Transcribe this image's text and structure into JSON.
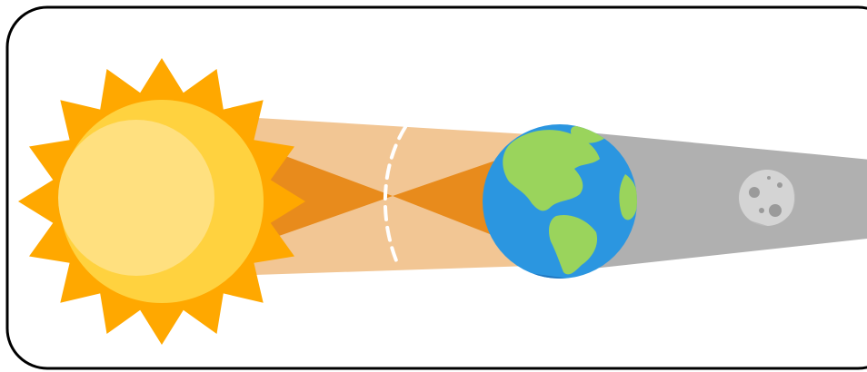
{
  "diagram": {
    "bodies": [
      {
        "id": "sun",
        "icon": "sun-icon"
      },
      {
        "id": "earth",
        "icon": "earth-icon"
      },
      {
        "id": "moon",
        "icon": "moon-icon"
      }
    ],
    "regions": [
      {
        "id": "penumbra-beam",
        "role": "light-beam"
      },
      {
        "id": "umbra-cone",
        "role": "umbra"
      },
      {
        "id": "earth-shadow",
        "role": "shadow"
      },
      {
        "id": "focal-line",
        "role": "dashed-marker"
      }
    ]
  },
  "colors": {
    "frame_stroke": "#000000",
    "background": "#ffffff",
    "sun_rays": "#ffa800",
    "sun_disc": "#ffd23f",
    "sun_highlight": "#ffe07f",
    "sun_shade": "#ffc400",
    "beam": "#f2c694",
    "umbra": "#e88b1c",
    "shadow": "#b0b0b0",
    "ocean": "#2b96e0",
    "ocean_dark": "#1f76c0",
    "land": "#9ad45c",
    "moon": "#d4d4d4",
    "moon_dark": "#9a9a9a",
    "dash": "#ffffff"
  }
}
